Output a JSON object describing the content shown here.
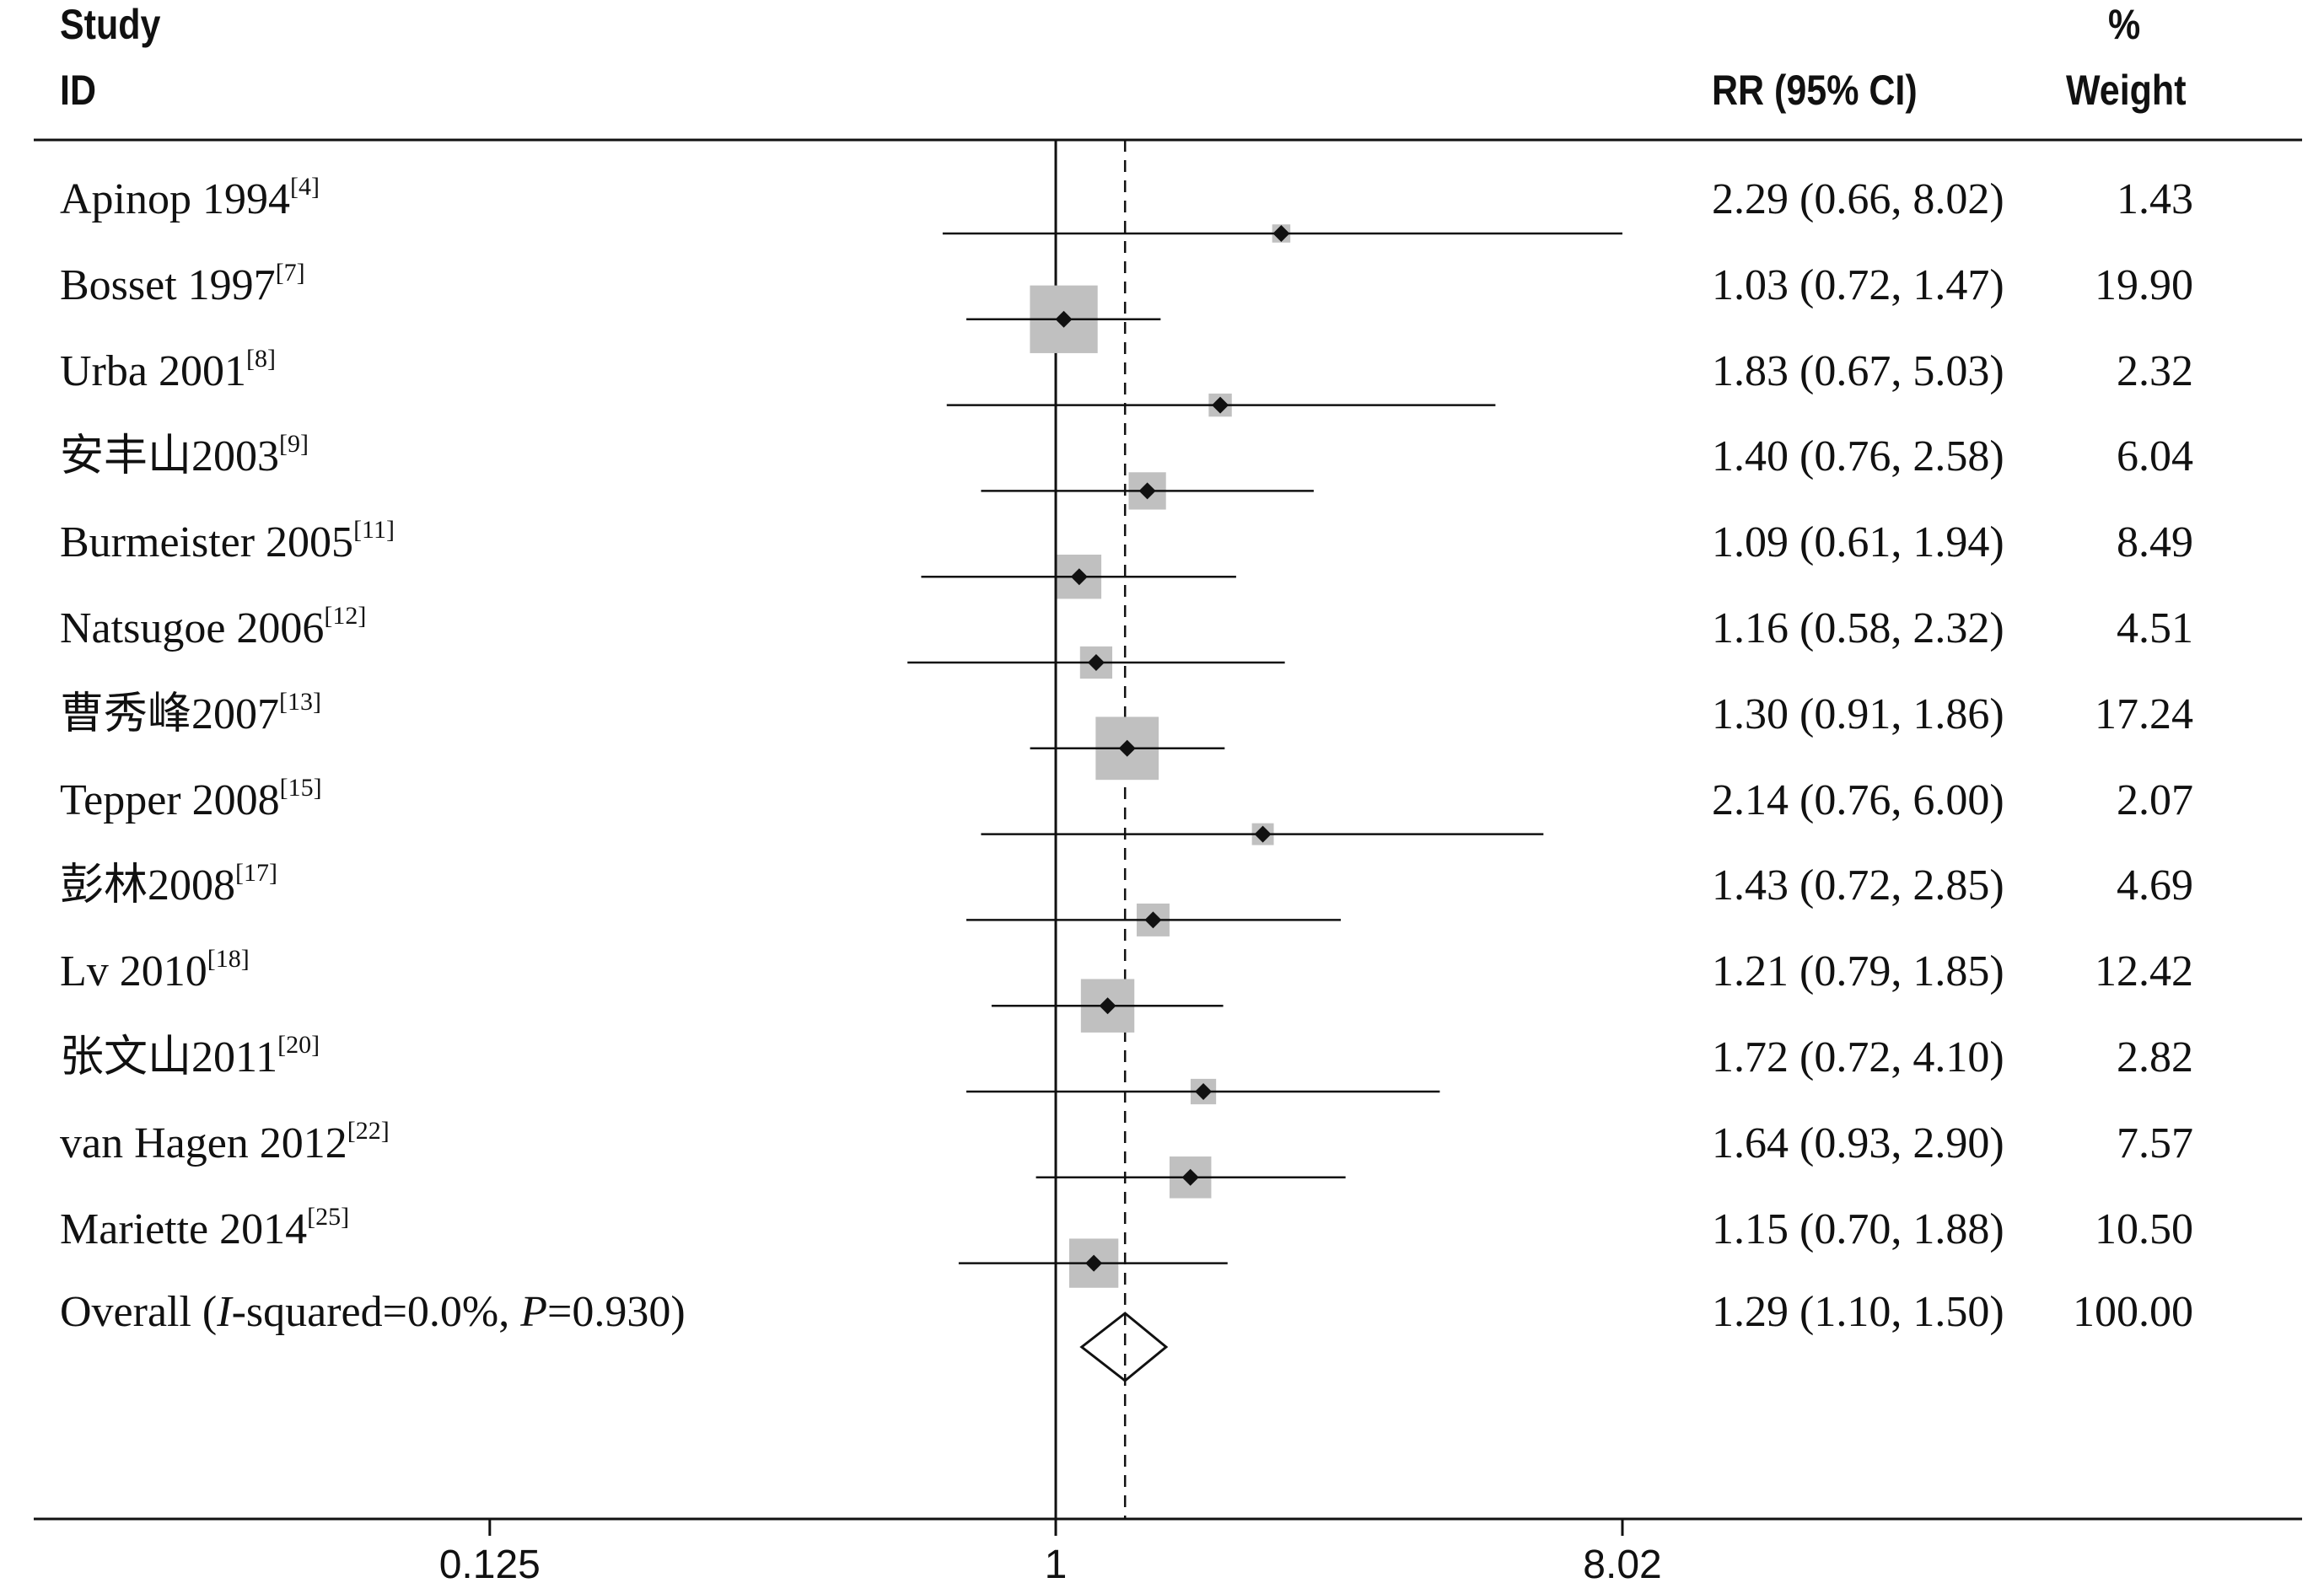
{
  "header": {
    "study": "Study",
    "id": "ID",
    "pct": "%",
    "rr": "RR (95% CI)",
    "weight": "Weight"
  },
  "chart_data": {
    "type": "forest",
    "x_scale": "log",
    "null_line": 1,
    "overall_line": 1.29,
    "ticks": [
      "0.125",
      "1",
      "8.02"
    ],
    "studies": [
      {
        "name": "Apinop 1994",
        "ref": "[4]",
        "rr": 2.29,
        "lo": 0.66,
        "hi": 8.02,
        "weight": 1.43,
        "est_text": "2.29 (0.66, 8.02)",
        "weight_text": "1.43"
      },
      {
        "name": "Bosset 1997",
        "ref": "[7]",
        "rr": 1.03,
        "lo": 0.72,
        "hi": 1.47,
        "weight": 19.9,
        "est_text": "1.03 (0.72, 1.47)",
        "weight_text": "19.90"
      },
      {
        "name": "Urba 2001",
        "ref": "[8]",
        "rr": 1.83,
        "lo": 0.67,
        "hi": 5.03,
        "weight": 2.32,
        "est_text": "1.83 (0.67, 5.03)",
        "weight_text": "2.32"
      },
      {
        "name": "安丰山2003",
        "ref": "[9]",
        "rr": 1.4,
        "lo": 0.76,
        "hi": 2.58,
        "weight": 6.04,
        "est_text": "1.40 (0.76, 2.58)",
        "weight_text": "6.04"
      },
      {
        "name": "Burmeister 2005",
        "ref": "[11]",
        "rr": 1.09,
        "lo": 0.61,
        "hi": 1.94,
        "weight": 8.49,
        "est_text": "1.09 (0.61, 1.94)",
        "weight_text": "8.49"
      },
      {
        "name": "Natsugoe 2006",
        "ref": "[12]",
        "rr": 1.16,
        "lo": 0.58,
        "hi": 2.32,
        "weight": 4.51,
        "est_text": "1.16 (0.58, 2.32)",
        "weight_text": "4.51"
      },
      {
        "name": "曹秀峰2007",
        "ref": "[13]",
        "rr": 1.3,
        "lo": 0.91,
        "hi": 1.86,
        "weight": 17.24,
        "est_text": "1.30 (0.91, 1.86)",
        "weight_text": "17.24"
      },
      {
        "name": "Tepper 2008",
        "ref": "[15]",
        "rr": 2.14,
        "lo": 0.76,
        "hi": 6.0,
        "weight": 2.07,
        "est_text": "2.14 (0.76, 6.00)",
        "weight_text": "2.07"
      },
      {
        "name": "彭林2008",
        "ref": "[17]",
        "rr": 1.43,
        "lo": 0.72,
        "hi": 2.85,
        "weight": 4.69,
        "est_text": "1.43 (0.72, 2.85)",
        "weight_text": "4.69"
      },
      {
        "name": "Lv 2010",
        "ref": "[18]",
        "rr": 1.21,
        "lo": 0.79,
        "hi": 1.85,
        "weight": 12.42,
        "est_text": "1.21 (0.79, 1.85)",
        "weight_text": "12.42"
      },
      {
        "name": "张文山2011",
        "ref": "[20]",
        "rr": 1.72,
        "lo": 0.72,
        "hi": 4.1,
        "weight": 2.82,
        "est_text": "1.72 (0.72, 4.10)",
        "weight_text": "2.82"
      },
      {
        "name": "van Hagen 2012",
        "ref": "[22]",
        "rr": 1.64,
        "lo": 0.93,
        "hi": 2.9,
        "weight": 7.57,
        "est_text": "1.64 (0.93, 2.90)",
        "weight_text": "7.57"
      },
      {
        "name": "Mariette 2014",
        "ref": "[25]",
        "rr": 1.15,
        "lo": 0.7,
        "hi": 1.88,
        "weight": 10.5,
        "est_text": "1.15 (0.70, 1.88)",
        "weight_text": "10.50"
      }
    ],
    "overall": {
      "prefix": "Overall (",
      "i_label": "I",
      "mid": "-squared=0.0%, ",
      "p_label": "P",
      "suffix": "=0.930)",
      "rr": 1.29,
      "lo": 1.1,
      "hi": 1.5,
      "est_text": "1.29 (1.10, 1.50)",
      "weight_text": "100.00"
    }
  }
}
